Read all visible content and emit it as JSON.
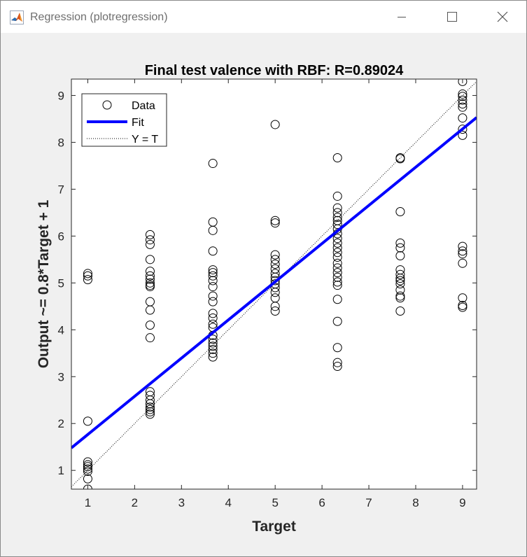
{
  "window": {
    "title": "Regression (plotregression)",
    "icons": {
      "app": "matlab-icon",
      "minimize": "minimize-icon",
      "maximize": "maximize-icon",
      "close": "close-icon"
    }
  },
  "chart_data": {
    "type": "scatter",
    "title": "Final test valence with RBF: R=0.89024",
    "xlabel": "Target",
    "ylabel": "Output ~= 0.8*Target + 1",
    "xlim": [
      0.65,
      9.3
    ],
    "ylim": [
      0.6,
      9.35
    ],
    "xticks": [
      1,
      2,
      3,
      4,
      5,
      6,
      7,
      8,
      9
    ],
    "yticks": [
      1,
      2,
      3,
      4,
      5,
      6,
      7,
      8,
      9
    ],
    "grid": false,
    "legend": {
      "placement": "top-left",
      "entries": [
        "Data",
        "Fit",
        "Y = T"
      ]
    },
    "colors": {
      "fit": "#0000ff",
      "data": "#000000",
      "identity": "#000000"
    },
    "fit": {
      "slope": 0.815,
      "intercept": 0.95
    },
    "series": [
      {
        "name": "Data",
        "points": [
          [
            1,
            5.2
          ],
          [
            1,
            5.15
          ],
          [
            1,
            5.07
          ],
          [
            1,
            2.05
          ],
          [
            1,
            1.18
          ],
          [
            1,
            1.12
          ],
          [
            1,
            1.08
          ],
          [
            1,
            1.03
          ],
          [
            1,
            0.98
          ],
          [
            1,
            0.82
          ],
          [
            1,
            0.6
          ],
          [
            2.33,
            6.03
          ],
          [
            2.33,
            5.92
          ],
          [
            2.33,
            5.82
          ],
          [
            2.33,
            5.5
          ],
          [
            2.33,
            5.25
          ],
          [
            2.33,
            5.15
          ],
          [
            2.33,
            5.08
          ],
          [
            2.33,
            5.0
          ],
          [
            2.33,
            4.95
          ],
          [
            2.33,
            4.92
          ],
          [
            2.33,
            4.6
          ],
          [
            2.33,
            4.42
          ],
          [
            2.33,
            4.1
          ],
          [
            2.33,
            3.83
          ],
          [
            2.33,
            2.68
          ],
          [
            2.33,
            2.6
          ],
          [
            2.33,
            2.5
          ],
          [
            2.33,
            2.42
          ],
          [
            2.33,
            2.35
          ],
          [
            2.33,
            2.3
          ],
          [
            2.33,
            2.25
          ],
          [
            2.33,
            2.2
          ],
          [
            3.67,
            7.55
          ],
          [
            3.67,
            6.3
          ],
          [
            3.67,
            6.12
          ],
          [
            3.67,
            5.68
          ],
          [
            3.67,
            5.28
          ],
          [
            3.67,
            5.22
          ],
          [
            3.67,
            5.15
          ],
          [
            3.67,
            5.05
          ],
          [
            3.67,
            4.92
          ],
          [
            3.67,
            4.72
          ],
          [
            3.67,
            4.6
          ],
          [
            3.67,
            4.35
          ],
          [
            3.67,
            4.25
          ],
          [
            3.67,
            4.12
          ],
          [
            3.67,
            4.05
          ],
          [
            3.67,
            3.88
          ],
          [
            3.67,
            3.8
          ],
          [
            3.67,
            3.72
          ],
          [
            3.67,
            3.65
          ],
          [
            3.67,
            3.58
          ],
          [
            3.67,
            3.5
          ],
          [
            3.67,
            3.42
          ],
          [
            5,
            8.38
          ],
          [
            5,
            6.33
          ],
          [
            5,
            6.28
          ],
          [
            5,
            5.6
          ],
          [
            5,
            5.5
          ],
          [
            5,
            5.4
          ],
          [
            5,
            5.3
          ],
          [
            5,
            5.2
          ],
          [
            5,
            5.12
          ],
          [
            5,
            5.05
          ],
          [
            5,
            4.98
          ],
          [
            5,
            4.9
          ],
          [
            5,
            4.8
          ],
          [
            5,
            4.68
          ],
          [
            5,
            4.5
          ],
          [
            5,
            4.4
          ],
          [
            6.33,
            7.67
          ],
          [
            6.33,
            6.85
          ],
          [
            6.33,
            6.6
          ],
          [
            6.33,
            6.5
          ],
          [
            6.33,
            6.4
          ],
          [
            6.33,
            6.33
          ],
          [
            6.33,
            6.25
          ],
          [
            6.33,
            6.15
          ],
          [
            6.33,
            6.05
          ],
          [
            6.33,
            5.95
          ],
          [
            6.33,
            5.85
          ],
          [
            6.33,
            5.75
          ],
          [
            6.33,
            5.65
          ],
          [
            6.33,
            5.55
          ],
          [
            6.33,
            5.42
          ],
          [
            6.33,
            5.32
          ],
          [
            6.33,
            5.22
          ],
          [
            6.33,
            5.12
          ],
          [
            6.33,
            5.02
          ],
          [
            6.33,
            4.95
          ],
          [
            6.33,
            4.65
          ],
          [
            6.33,
            4.18
          ],
          [
            6.33,
            3.62
          ],
          [
            6.33,
            3.3
          ],
          [
            6.33,
            3.22
          ],
          [
            7.67,
            7.67
          ],
          [
            7.67,
            7.65
          ],
          [
            7.67,
            6.52
          ],
          [
            7.67,
            5.85
          ],
          [
            7.67,
            5.75
          ],
          [
            7.67,
            5.58
          ],
          [
            7.67,
            5.28
          ],
          [
            7.67,
            5.18
          ],
          [
            7.67,
            5.1
          ],
          [
            7.67,
            5.05
          ],
          [
            7.67,
            4.98
          ],
          [
            7.67,
            4.85
          ],
          [
            7.67,
            4.72
          ],
          [
            7.67,
            4.68
          ],
          [
            7.67,
            4.4
          ],
          [
            9,
            9.3
          ],
          [
            9,
            9.03
          ],
          [
            9,
            8.98
          ],
          [
            9,
            8.9
          ],
          [
            9,
            8.82
          ],
          [
            9,
            8.75
          ],
          [
            9,
            8.52
          ],
          [
            9,
            8.28
          ],
          [
            9,
            8.15
          ],
          [
            9,
            5.78
          ],
          [
            9,
            5.68
          ],
          [
            9,
            5.62
          ],
          [
            9,
            5.42
          ],
          [
            9,
            4.68
          ],
          [
            9,
            4.52
          ],
          [
            9,
            4.48
          ]
        ]
      }
    ]
  }
}
